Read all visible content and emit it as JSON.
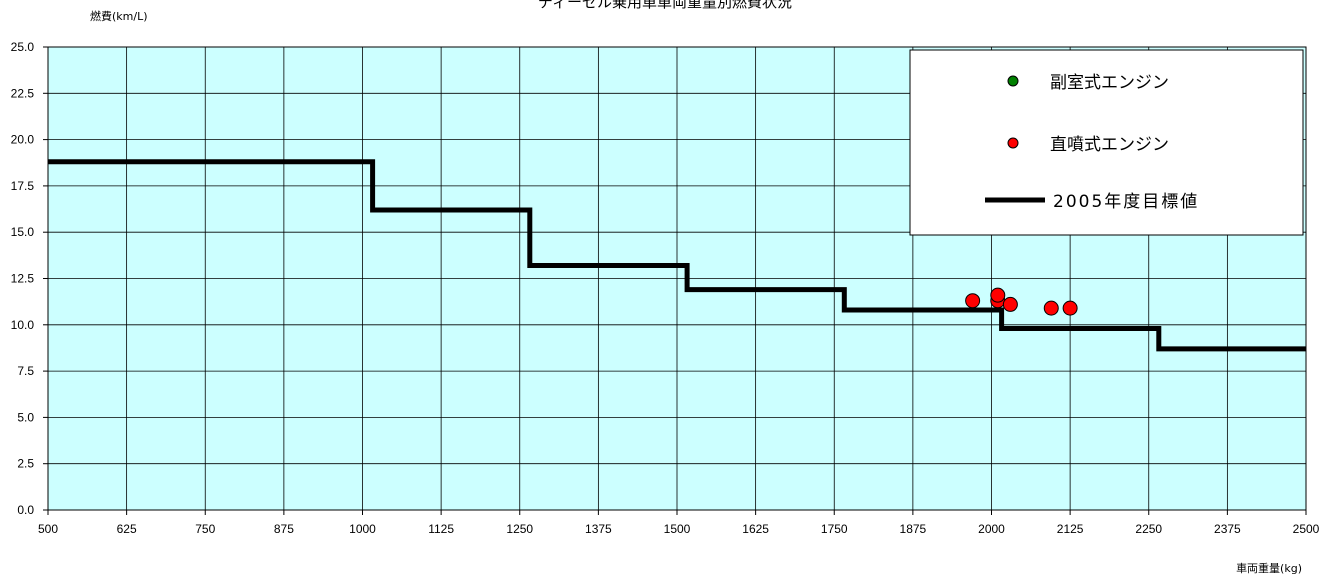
{
  "chart_data": {
    "type": "scatter",
    "title": "ディーゼル乗用車車両重量別燃費状況",
    "xlabel": "車両重量(kg)",
    "ylabel": "燃費(km/L)",
    "xlim": [
      500,
      2500
    ],
    "ylim": [
      0,
      25
    ],
    "x_ticks": [
      "500",
      "625",
      "750",
      "875",
      "1000",
      "1125",
      "1250",
      "1375",
      "1500",
      "1625",
      "1750",
      "1875",
      "2000",
      "2125",
      "2250",
      "2375",
      "2500"
    ],
    "y_ticks": [
      "0.0",
      "2.5",
      "5.0",
      "7.5",
      "10.0",
      "12.5",
      "15.0",
      "17.5",
      "20.0",
      "22.5",
      "25.0"
    ],
    "grid": true,
    "legend_position": "top-right",
    "series": [
      {
        "name": "副室式エンジン",
        "type": "scatter",
        "color": "#008000",
        "points": []
      },
      {
        "name": "直噴式エンジン",
        "type": "scatter",
        "color": "#ff0000",
        "points": [
          {
            "x": 1970,
            "y": 11.3
          },
          {
            "x": 2010,
            "y": 11.3
          },
          {
            "x": 2010,
            "y": 11.6
          },
          {
            "x": 2030,
            "y": 11.1
          },
          {
            "x": 2095,
            "y": 10.9
          },
          {
            "x": 2125,
            "y": 10.9
          }
        ]
      },
      {
        "name": "2005年度目標値",
        "type": "step",
        "color": "#000000",
        "points": [
          {
            "x": 500,
            "y": 18.8
          },
          {
            "x": 1016,
            "y": 18.8
          },
          {
            "x": 1016,
            "y": 16.2
          },
          {
            "x": 1266,
            "y": 16.2
          },
          {
            "x": 1266,
            "y": 13.2
          },
          {
            "x": 1516,
            "y": 13.2
          },
          {
            "x": 1516,
            "y": 11.9
          },
          {
            "x": 1766,
            "y": 11.9
          },
          {
            "x": 1766,
            "y": 10.8
          },
          {
            "x": 2016,
            "y": 10.8
          },
          {
            "x": 2016,
            "y": 9.8
          },
          {
            "x": 2266,
            "y": 9.8
          },
          {
            "x": 2266,
            "y": 8.7
          },
          {
            "x": 2500,
            "y": 8.7
          }
        ]
      }
    ]
  }
}
